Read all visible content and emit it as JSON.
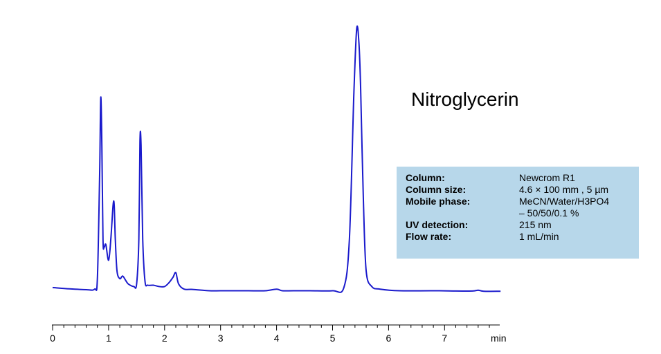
{
  "chart_data": {
    "type": "line",
    "title": "Nitroglycerin",
    "xlabel": "min",
    "ylabel": "",
    "xlim": [
      0,
      8
    ],
    "ylim": [
      0,
      1
    ],
    "x_ticks": [
      "0",
      "1",
      "2",
      "3",
      "4",
      "5",
      "6",
      "7"
    ],
    "series": [
      {
        "name": "",
        "color": "#1a1acc",
        "x": [
          0,
          0.3,
          0.6,
          0.75,
          0.8,
          0.84,
          0.86,
          0.88,
          0.9,
          0.92,
          0.95,
          1.0,
          1.04,
          1.08,
          1.1,
          1.12,
          1.15,
          1.2,
          1.25,
          1.3,
          1.35,
          1.45,
          1.5,
          1.54,
          1.56,
          1.58,
          1.61,
          1.65,
          1.7,
          1.8,
          1.9,
          2.0,
          2.08,
          2.15,
          2.2,
          2.25,
          2.35,
          2.5,
          2.8,
          3.0,
          3.3,
          3.5,
          3.8,
          4.0,
          4.1,
          4.3,
          4.6,
          5.0,
          5.2,
          5.3,
          5.38,
          5.43,
          5.47,
          5.5,
          5.55,
          5.6,
          5.7,
          5.85,
          6.2,
          6.8,
          7.2,
          7.5,
          7.6,
          7.7,
          8.0
        ],
        "y": [
          0.016,
          0.011,
          0.008,
          0.01,
          0.05,
          0.45,
          0.74,
          0.55,
          0.2,
          0.17,
          0.18,
          0.12,
          0.2,
          0.33,
          0.33,
          0.2,
          0.08,
          0.05,
          0.06,
          0.045,
          0.03,
          0.02,
          0.03,
          0.2,
          0.57,
          0.56,
          0.2,
          0.04,
          0.025,
          0.025,
          0.02,
          0.02,
          0.035,
          0.055,
          0.073,
          0.03,
          0.01,
          0.009,
          0.004,
          0.004,
          0.004,
          0.004,
          0.004,
          0.01,
          0.004,
          0.004,
          0.004,
          0.004,
          0.015,
          0.2,
          0.75,
          1.0,
          0.95,
          0.78,
          0.35,
          0.08,
          0.02,
          0.01,
          0.004,
          0.004,
          0.003,
          0.003,
          0.006,
          0.002,
          0.002
        ]
      }
    ]
  },
  "conditions": [
    {
      "key": "Column:",
      "value": "Newcrom R1"
    },
    {
      "key": "Column size:",
      "value": "4.6 × 100 mm , 5 µm"
    },
    {
      "key": "Mobile phase:",
      "value": "MeCN/Water/H3PO4"
    },
    {
      "key": "",
      "value": "– 50/50/0.1 %"
    },
    {
      "key": "UV detection:",
      "value": "215 nm"
    },
    {
      "key": "Flow rate:",
      "value": "1 mL/min"
    }
  ]
}
